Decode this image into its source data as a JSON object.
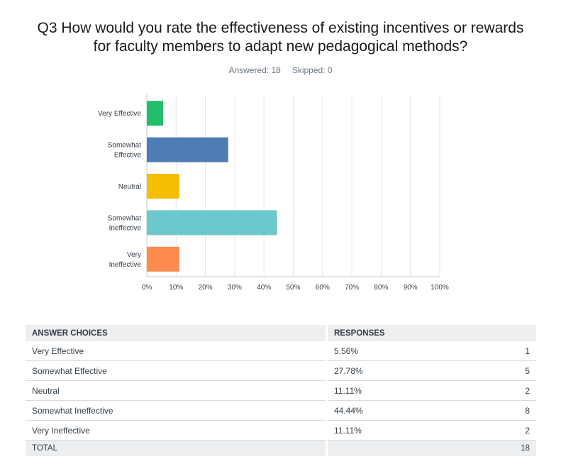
{
  "title": {
    "line1": "Q3 How would you rate the effectiveness of existing incentives or rewards",
    "line2": "for faculty members to adapt new pedagogical methods?"
  },
  "stats": {
    "answered": "Answered: 18",
    "skipped": "Skipped: 0"
  },
  "chart_data": {
    "type": "bar",
    "orientation": "horizontal",
    "title": "Q3 How would you rate the effectiveness of existing incentives or rewards for faculty members to adapt new pedagogical methods?",
    "categories": [
      {
        "label": [
          "Very Effective"
        ],
        "value": 5.56,
        "color": "#21bf6b"
      },
      {
        "label": [
          "Somewhat",
          "Effective"
        ],
        "value": 27.78,
        "color": "#507cb6"
      },
      {
        "label": [
          "Neutral"
        ],
        "value": 11.11,
        "color": "#f6be00"
      },
      {
        "label": [
          "Somewhat",
          "Ineffective"
        ],
        "value": 44.44,
        "color": "#6bc8cd"
      },
      {
        "label": [
          "Very",
          "Ineffective"
        ],
        "value": 11.11,
        "color": "#ff8b4f"
      }
    ],
    "xlim": [
      0,
      100
    ],
    "ticks": [
      "0%",
      "10%",
      "20%",
      "30%",
      "40%",
      "50%",
      "60%",
      "70%",
      "80%",
      "90%",
      "100%"
    ],
    "grid": true,
    "xlabel": "",
    "ylabel": ""
  },
  "table": {
    "headers": {
      "choice": "ANSWER CHOICES",
      "responses": "RESPONSES"
    },
    "rows": [
      {
        "choice": "Very Effective",
        "percent": "5.56%",
        "count": "1"
      },
      {
        "choice": "Somewhat Effective",
        "percent": "27.78%",
        "count": "5"
      },
      {
        "choice": "Neutral",
        "percent": "11.11%",
        "count": "2"
      },
      {
        "choice": "Somewhat Ineffective",
        "percent": "44.44%",
        "count": "8"
      },
      {
        "choice": "Very Ineffective",
        "percent": "11.11%",
        "count": "2"
      }
    ],
    "total": {
      "label": "TOTAL",
      "count": "18"
    }
  }
}
